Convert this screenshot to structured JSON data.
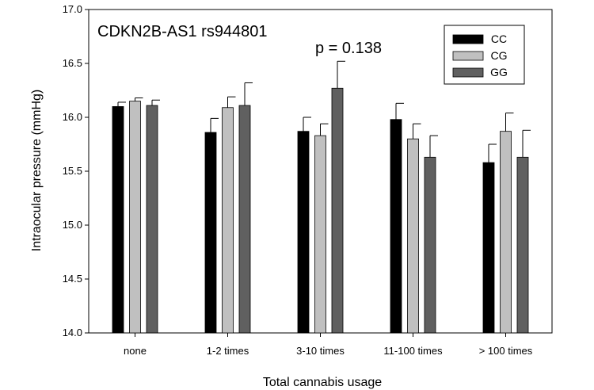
{
  "chart_data": {
    "type": "bar",
    "title": "CDKN2B-AS1 rs944801",
    "annotation": "p = 0.138",
    "xlabel": "Total cannabis usage",
    "ylabel": "Intraocular pressure (mmHg)",
    "ylim": [
      14.0,
      17.0
    ],
    "yticks": [
      "14.0",
      "14.5",
      "15.0",
      "15.5",
      "16.0",
      "16.5",
      "17.0"
    ],
    "categories": [
      "none",
      "1-2 times",
      "3-10 times",
      "11-100 times",
      "> 100 times"
    ],
    "legend_position": "top-right",
    "series": [
      {
        "name": "CC",
        "color": "#000000",
        "values": [
          16.1,
          15.86,
          15.87,
          15.98,
          15.58
        ],
        "errors": [
          0.04,
          0.13,
          0.13,
          0.15,
          0.17
        ]
      },
      {
        "name": "CG",
        "color": "#c0c0c0",
        "values": [
          16.15,
          16.09,
          15.83,
          15.8,
          15.87
        ],
        "errors": [
          0.03,
          0.1,
          0.11,
          0.14,
          0.17
        ]
      },
      {
        "name": "GG",
        "color": "#606060",
        "values": [
          16.11,
          16.11,
          16.27,
          15.63,
          15.63
        ],
        "errors": [
          0.05,
          0.21,
          0.25,
          0.2,
          0.25
        ]
      }
    ]
  }
}
